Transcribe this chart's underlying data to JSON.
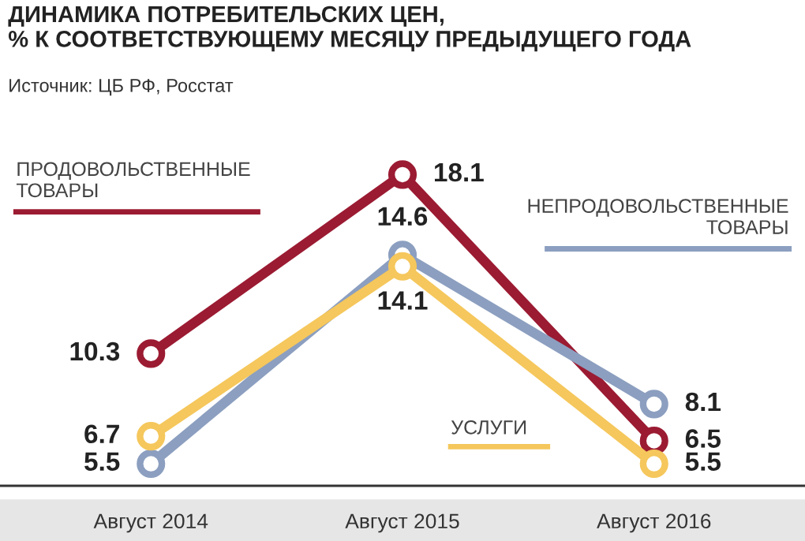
{
  "chart_data": {
    "type": "line",
    "title": "ДИНАМИКА ПОТРЕБИТЕЛЬСКИХ ЦЕН,\n% К СООТВЕТСТВУЮЩЕМУ МЕСЯЦУ ПРЕДЫДУЩЕГО ГОДА",
    "subtitle": "Источник: ЦБ РФ, Росстат",
    "categories": [
      "Август 2014",
      "Август 2015",
      "Август 2016"
    ],
    "series": [
      {
        "name": "ПРОДОВОЛЬСТВЕННЫЕ\nТОВАРЫ",
        "color": "#9b1b32",
        "values": [
          10.3,
          18.1,
          6.5
        ]
      },
      {
        "name": "НЕПРОДОВОЛЬСТВЕННЫЕ\nТОВАРЫ",
        "color": "#8c9fc0",
        "values": [
          5.5,
          14.6,
          8.1
        ]
      },
      {
        "name": "УСЛУГИ",
        "color": "#f5c75c",
        "values": [
          6.7,
          14.1,
          5.5
        ]
      }
    ],
    "marker": "circle",
    "data_labels": true,
    "legend": false,
    "grid": false
  }
}
